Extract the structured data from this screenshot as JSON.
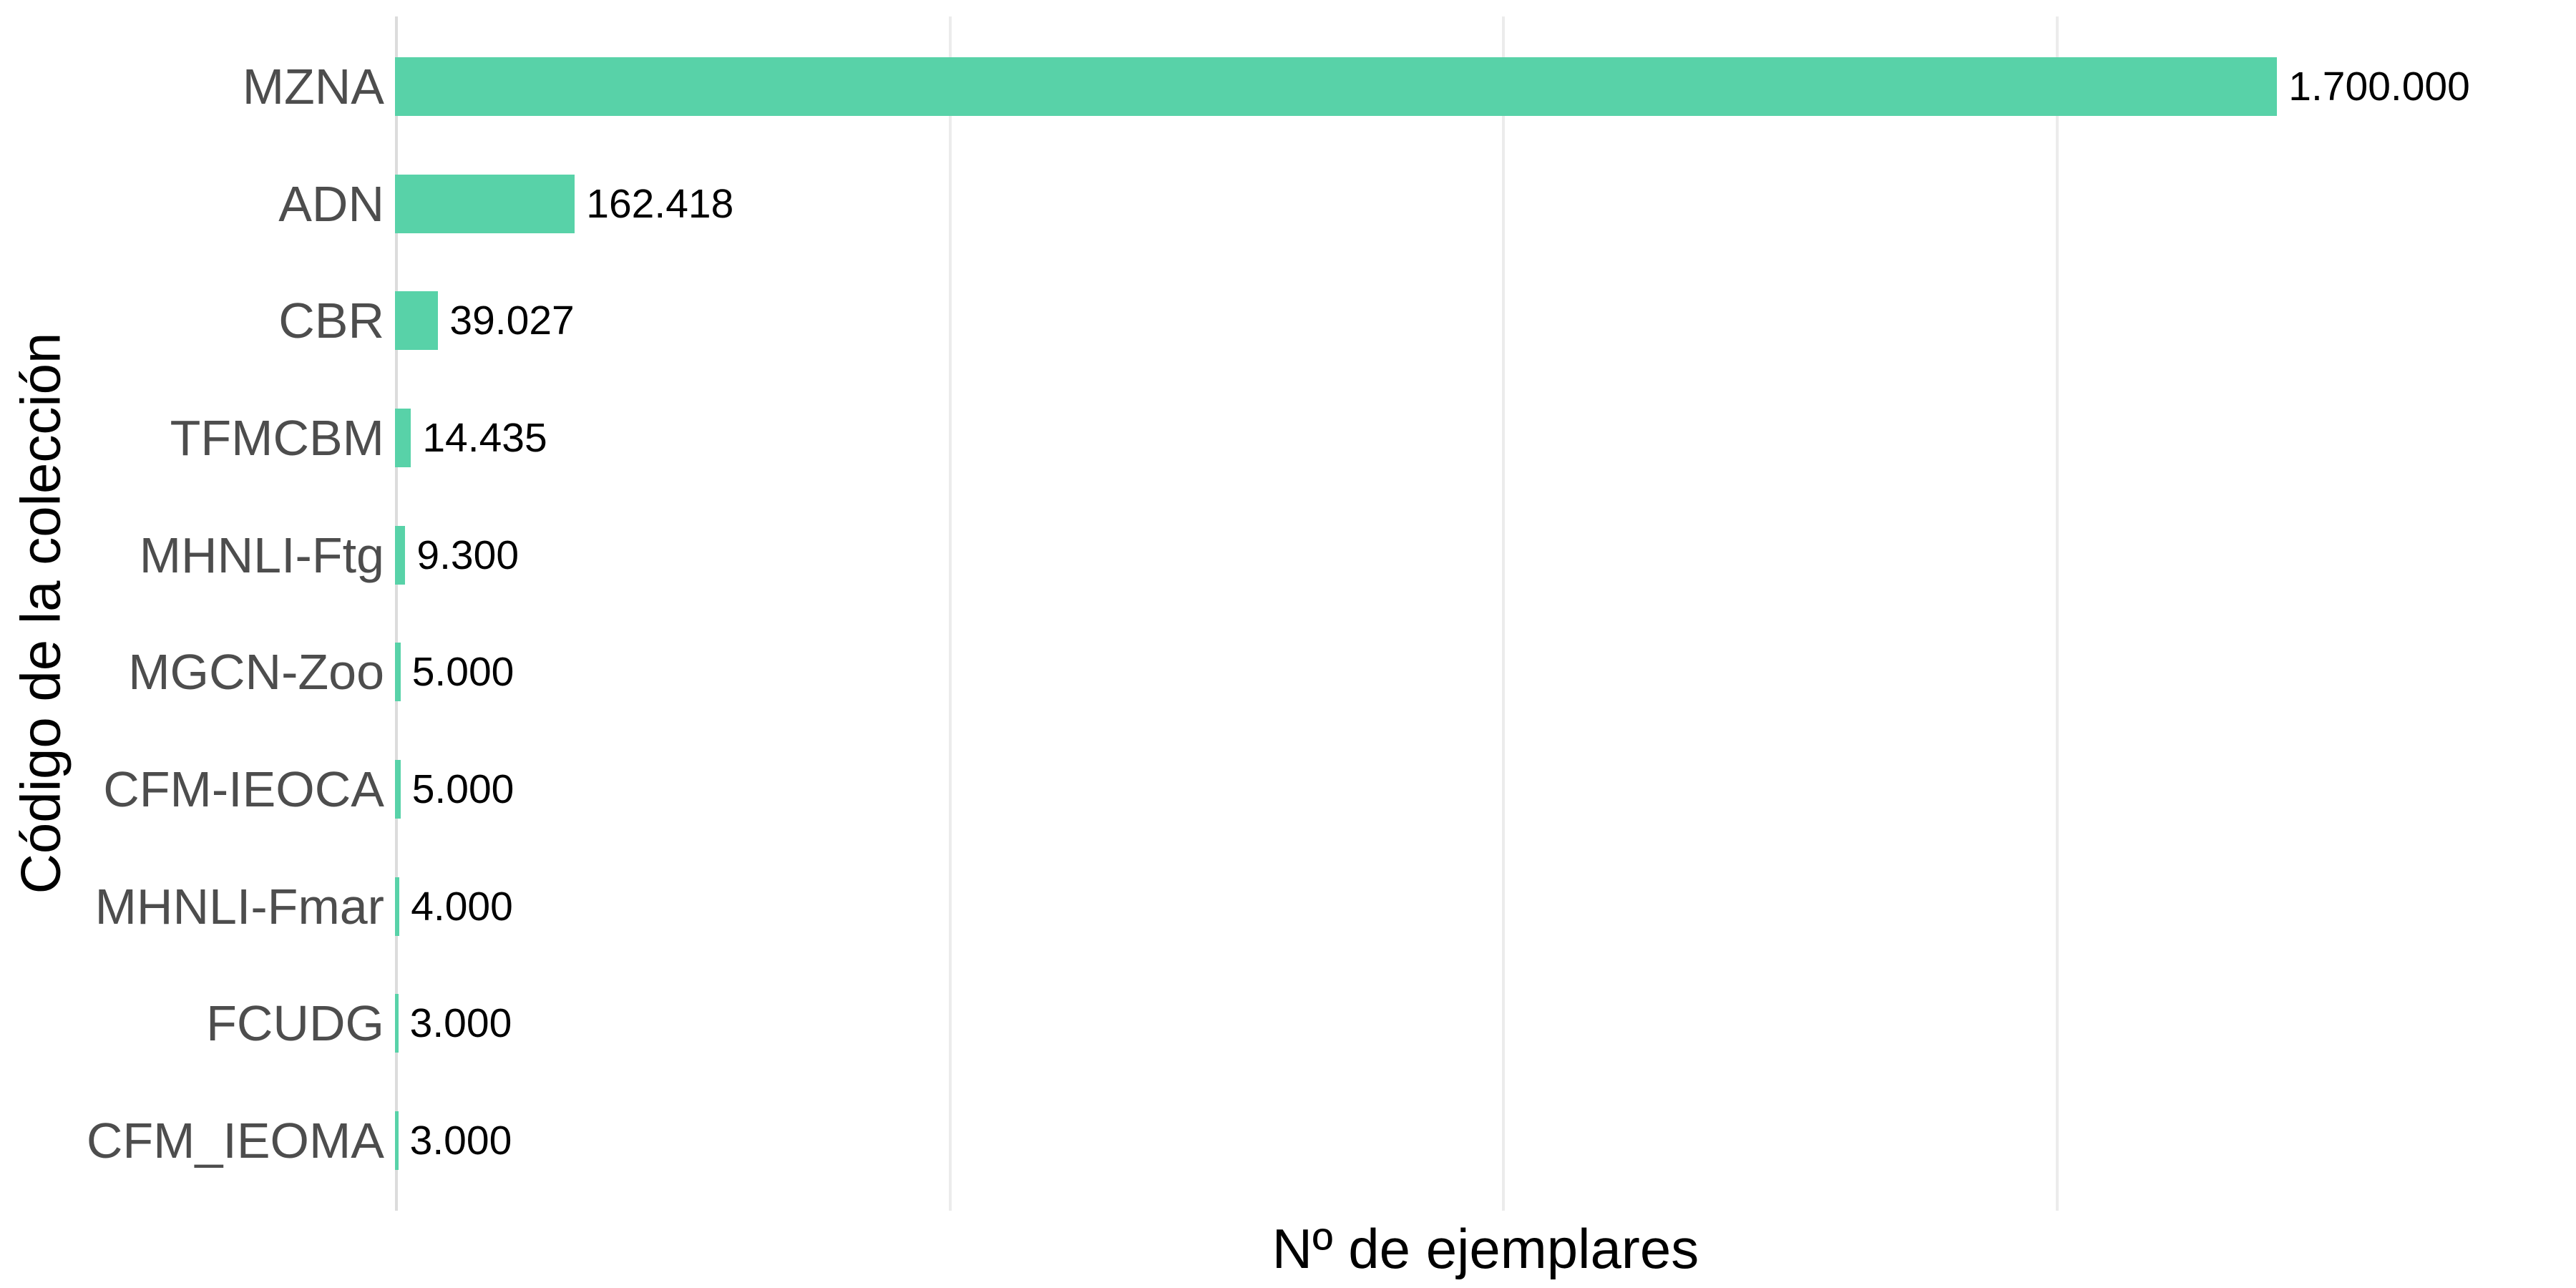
{
  "chart_data": {
    "type": "bar",
    "orientation": "horizontal",
    "title": "",
    "xlabel": "Nº de ejemplares",
    "ylabel": "Código de la colección",
    "categories": [
      "MZNA",
      "ADN",
      "CBR",
      "TFMCBM",
      "MHNLI-Ftg",
      "MGCN-Zoo",
      "CFM-IEOCA",
      "MHNLI-Fmar",
      "FCUDG",
      "CFM_IEOMA"
    ],
    "values": [
      1700000,
      162418,
      39027,
      14435,
      9300,
      5000,
      5000,
      4000,
      3000,
      3000
    ],
    "value_labels": [
      "1.700.000",
      "162.418",
      "39.027",
      "14.435",
      "9.300",
      "5.000",
      "5.000",
      "4.000",
      "3.000",
      "3.000"
    ],
    "xlim": [
      0,
      1970000
    ],
    "x_gridlines": [
      500000,
      1000000,
      1500000
    ],
    "x_tick_labels": [],
    "legend": "none",
    "grid": "vertical-major-only",
    "colors": {
      "bar": "#58D2A8",
      "category_text": "#4D4D4D",
      "value_text": "#000000",
      "axis_title_text": "#000000",
      "gridline": "#ECECEC",
      "zero_line": "#DCDCDC",
      "background": "#FFFFFF"
    }
  }
}
